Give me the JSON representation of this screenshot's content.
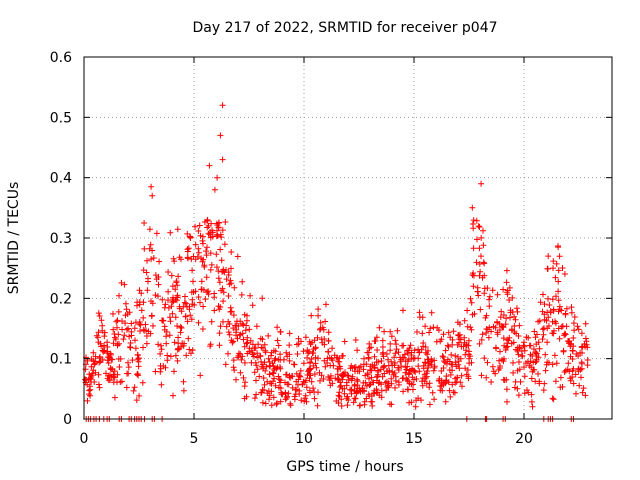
{
  "chart_data": {
    "type": "scatter",
    "title": "Day 217 of 2022, SRMTID for receiver p047",
    "xlabel": "GPS time / hours",
    "ylabel": "SRMTID / TECUs",
    "xlim": [
      0,
      24
    ],
    "ylim": [
      0,
      0.6
    ],
    "xticks": [
      0,
      5,
      10,
      15,
      20
    ],
    "yticks": [
      0,
      0.1,
      0.2,
      0.3,
      0.4,
      0.5,
      0.6
    ],
    "xtick_labels": [
      "0",
      "5",
      "10",
      "15",
      "20"
    ],
    "ytick_labels": [
      "0",
      "0.1",
      "0.2",
      "0.3",
      "0.4",
      "0.5",
      "0.6"
    ],
    "grid": true,
    "marker": "+",
    "color": "#ff0000",
    "series": [
      {
        "name": "SRMTID",
        "envelope": [
          [
            0.0,
            0.06,
            0.02
          ],
          [
            0.5,
            0.08,
            0.03
          ],
          [
            0.8,
            0.14,
            0.03
          ],
          [
            1.2,
            0.08,
            0.02
          ],
          [
            1.6,
            0.13,
            0.05
          ],
          [
            2.5,
            0.12,
            0.05
          ],
          [
            3.0,
            0.26,
            0.07
          ],
          [
            3.3,
            0.2,
            0.07
          ],
          [
            3.6,
            0.13,
            0.05
          ],
          [
            4.0,
            0.18,
            0.06
          ],
          [
            4.5,
            0.17,
            0.06
          ],
          [
            5.0,
            0.22,
            0.06
          ],
          [
            5.5,
            0.25,
            0.07
          ],
          [
            5.8,
            0.28,
            0.08
          ],
          [
            6.1,
            0.3,
            0.08
          ],
          [
            6.4,
            0.21,
            0.06
          ],
          [
            7.0,
            0.15,
            0.05
          ],
          [
            7.5,
            0.1,
            0.04
          ],
          [
            8.5,
            0.08,
            0.03
          ],
          [
            9.5,
            0.07,
            0.03
          ],
          [
            10.5,
            0.1,
            0.04
          ],
          [
            11.0,
            0.12,
            0.04
          ],
          [
            11.5,
            0.07,
            0.03
          ],
          [
            12.5,
            0.06,
            0.03
          ],
          [
            13.5,
            0.08,
            0.03
          ],
          [
            14.5,
            0.09,
            0.03
          ],
          [
            15.0,
            0.07,
            0.03
          ],
          [
            15.8,
            0.11,
            0.04
          ],
          [
            16.5,
            0.09,
            0.03
          ],
          [
            17.0,
            0.1,
            0.03
          ],
          [
            17.5,
            0.11,
            0.03
          ],
          [
            17.7,
            0.28,
            0.08
          ],
          [
            18.0,
            0.27,
            0.09
          ],
          [
            18.3,
            0.17,
            0.06
          ],
          [
            18.7,
            0.12,
            0.04
          ],
          [
            19.3,
            0.14,
            0.05
          ],
          [
            19.8,
            0.1,
            0.03
          ],
          [
            20.5,
            0.09,
            0.03
          ],
          [
            21.0,
            0.16,
            0.06
          ],
          [
            21.6,
            0.17,
            0.06
          ],
          [
            22.0,
            0.12,
            0.04
          ],
          [
            22.5,
            0.09,
            0.03
          ],
          [
            22.9,
            0.1,
            0.03
          ]
        ],
        "zero_points": [
          0.1,
          0.2,
          0.3,
          0.45,
          0.55,
          0.7,
          0.9,
          1.05,
          1.15,
          1.6,
          1.7,
          2.05,
          2.15,
          2.3,
          2.4,
          2.5,
          2.6,
          2.75,
          3.1,
          3.2,
          3.55,
          17.4,
          18.25,
          18.3,
          19.05,
          19.15,
          20.9,
          21.1,
          21.2,
          21.3,
          22.15,
          22.25
        ],
        "peaks": [
          [
            6.3,
            0.52
          ],
          [
            6.2,
            0.47
          ],
          [
            6.3,
            0.43
          ],
          [
            5.7,
            0.42
          ],
          [
            6.05,
            0.4
          ],
          [
            18.05,
            0.39
          ],
          [
            3.05,
            0.385
          ],
          [
            3.1,
            0.37
          ],
          [
            17.65,
            0.35
          ],
          [
            5.95,
            0.38
          ],
          [
            21.55,
            0.285
          ],
          [
            21.1,
            0.27
          ],
          [
            11.0,
            0.19
          ],
          [
            14.5,
            0.18
          ],
          [
            8.1,
            0.2
          ]
        ]
      }
    ]
  }
}
